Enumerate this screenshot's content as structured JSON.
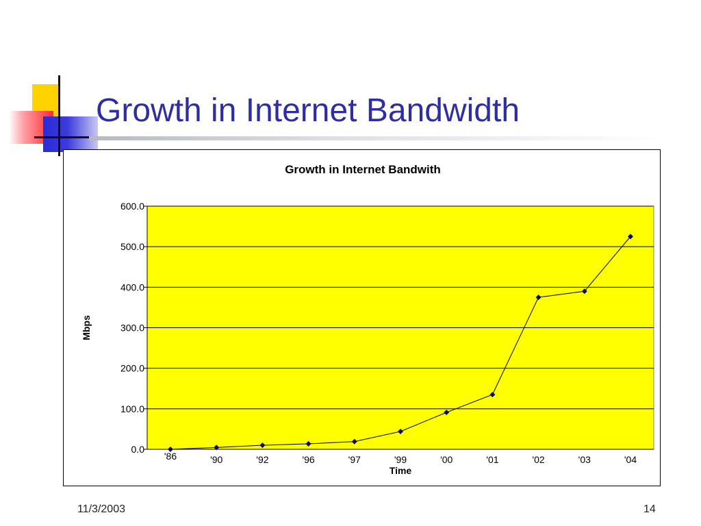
{
  "slide": {
    "title": "Growth in Internet Bandwidth",
    "date": "11/3/2003",
    "page_number": "14"
  },
  "colors": {
    "title": "#2e2ea0",
    "plot_area": "#ffff00",
    "series": "#0a0a66",
    "deco_yellow": "#ffd200",
    "deco_red": "#ff2a32",
    "deco_blue": "#2a2ad8"
  },
  "chart_data": {
    "type": "line",
    "title": "Growth in Internet Bandwith",
    "xlabel": "Time",
    "ylabel": "Mbps",
    "categories": [
      "'86",
      "'90",
      "'92",
      "'96",
      "'97",
      "'99",
      "'00",
      "'01",
      "'02",
      "'03",
      "'04"
    ],
    "series": [
      {
        "values": [
          0.1,
          4.5,
          10.0,
          13.5,
          19.0,
          44.0,
          91.0,
          135.0,
          375.0,
          390.0,
          525.0
        ]
      }
    ],
    "yticks": [
      "0.0",
      "100.0",
      "200.0",
      "300.0",
      "400.0",
      "500.0",
      "600.0"
    ],
    "ylim": [
      0,
      600
    ],
    "grid": true,
    "legend": "none",
    "marker": "diamond"
  }
}
